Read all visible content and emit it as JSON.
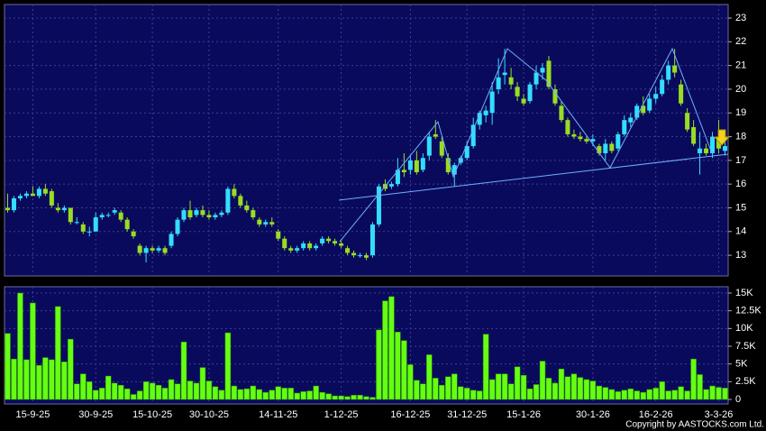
{
  "chart_data": [
    {
      "type": "candlestick",
      "up_color": "#33ddff",
      "down_color": "#99dd22",
      "grid": true,
      "xlim": [
        -0.5,
        114.5
      ],
      "ylim": [
        12.13,
        23.57
      ],
      "xticks": [
        {
          "value": 4,
          "label": "15-9-25"
        },
        {
          "value": 14,
          "label": "30-9-25"
        },
        {
          "value": 23,
          "label": "15-10-25"
        },
        {
          "value": 32,
          "label": "30-10-25"
        },
        {
          "value": 43,
          "label": "14-11-25"
        },
        {
          "value": 53,
          "label": "1-12-25"
        },
        {
          "value": 64,
          "label": "16-12-25"
        },
        {
          "value": 73,
          "label": "31-12-25"
        },
        {
          "value": 82,
          "label": "15-1-26"
        },
        {
          "value": 93,
          "label": "30-1-26"
        },
        {
          "value": 103,
          "label": "16-2-26"
        },
        {
          "value": 113,
          "label": "3-3-26"
        }
      ],
      "yticks": [
        13,
        14,
        15,
        16,
        17,
        18,
        19,
        20,
        21,
        22,
        23
      ],
      "ohlc": [
        [
          15.0,
          15.6,
          14.8,
          14.9
        ],
        [
          14.9,
          15.5,
          14.8,
          15.4
        ],
        [
          15.4,
          15.6,
          15.3,
          15.5
        ],
        [
          15.5,
          15.7,
          15.4,
          15.6
        ],
        [
          15.6,
          15.9,
          15.5,
          15.5
        ],
        [
          15.5,
          15.9,
          15.4,
          15.8
        ],
        [
          15.8,
          16.0,
          15.5,
          15.6
        ],
        [
          15.7,
          15.8,
          15.0,
          15.1
        ],
        [
          15.0,
          15.2,
          14.8,
          14.9
        ],
        [
          14.9,
          15.1,
          14.8,
          15.0
        ],
        [
          15.0,
          15.0,
          14.3,
          14.4
        ],
        [
          14.4,
          14.6,
          14.3,
          14.4
        ],
        [
          14.3,
          14.4,
          13.9,
          14.0
        ],
        [
          14.0,
          14.2,
          13.8,
          14.0
        ],
        [
          14.0,
          14.8,
          14.0,
          14.6
        ],
        [
          14.6,
          14.8,
          14.5,
          14.7
        ],
        [
          14.7,
          14.8,
          14.6,
          14.7
        ],
        [
          14.8,
          15.0,
          14.7,
          14.9
        ],
        [
          14.8,
          14.9,
          14.4,
          14.5
        ],
        [
          14.5,
          14.6,
          14.0,
          14.1
        ],
        [
          14.0,
          14.1,
          13.7,
          13.8
        ],
        [
          13.4,
          13.5,
          13.0,
          13.1
        ],
        [
          13.1,
          13.4,
          12.7,
          13.3
        ],
        [
          13.3,
          13.4,
          13.1,
          13.2
        ],
        [
          13.2,
          13.4,
          13.1,
          13.3
        ],
        [
          13.3,
          13.4,
          13.0,
          13.1
        ],
        [
          13.4,
          14.0,
          13.3,
          13.9
        ],
        [
          13.9,
          14.6,
          13.8,
          14.5
        ],
        [
          14.5,
          15.0,
          14.4,
          14.9
        ],
        [
          14.9,
          15.3,
          14.5,
          14.6
        ],
        [
          14.7,
          15.0,
          14.6,
          14.9
        ],
        [
          14.9,
          15.1,
          14.6,
          14.7
        ],
        [
          14.7,
          14.9,
          14.5,
          14.6
        ],
        [
          14.6,
          14.8,
          14.5,
          14.7
        ],
        [
          14.7,
          14.9,
          14.6,
          14.8
        ],
        [
          14.8,
          15.9,
          14.7,
          15.8
        ],
        [
          15.8,
          16.0,
          15.4,
          15.5
        ],
        [
          15.5,
          15.6,
          15.0,
          15.1
        ],
        [
          15.1,
          15.3,
          14.8,
          14.9
        ],
        [
          14.9,
          15.0,
          14.5,
          14.6
        ],
        [
          14.5,
          14.6,
          14.2,
          14.3
        ],
        [
          14.3,
          14.5,
          14.2,
          14.4
        ],
        [
          14.4,
          14.6,
          14.2,
          14.3
        ],
        [
          14.0,
          14.1,
          13.6,
          13.7
        ],
        [
          13.7,
          13.8,
          13.2,
          13.3
        ],
        [
          13.3,
          13.4,
          13.1,
          13.2
        ],
        [
          13.2,
          13.4,
          13.1,
          13.3
        ],
        [
          13.3,
          13.6,
          13.2,
          13.5
        ],
        [
          13.5,
          13.6,
          13.2,
          13.3
        ],
        [
          13.3,
          13.5,
          13.2,
          13.4
        ],
        [
          13.5,
          13.8,
          13.4,
          13.7
        ],
        [
          13.7,
          13.8,
          13.5,
          13.6
        ],
        [
          13.6,
          13.7,
          13.4,
          13.5
        ],
        [
          13.5,
          13.6,
          13.3,
          13.4
        ],
        [
          13.3,
          13.4,
          13.0,
          13.1
        ],
        [
          13.1,
          13.2,
          12.9,
          13.0
        ],
        [
          13.0,
          13.1,
          12.9,
          13.0
        ],
        [
          13.0,
          13.1,
          12.8,
          12.9
        ],
        [
          13.0,
          14.4,
          12.9,
          14.3
        ],
        [
          14.3,
          16.0,
          14.2,
          15.9
        ],
        [
          16.0,
          16.2,
          15.7,
          15.8
        ],
        [
          15.9,
          16.1,
          15.8,
          16.0
        ],
        [
          16.0,
          17.1,
          15.9,
          16.6
        ],
        [
          16.6,
          17.3,
          16.3,
          16.5
        ],
        [
          16.6,
          17.2,
          16.4,
          17.0
        ],
        [
          17.0,
          17.4,
          16.4,
          16.5
        ],
        [
          16.6,
          17.3,
          16.5,
          17.1
        ],
        [
          17.2,
          18.2,
          17.0,
          18.0
        ],
        [
          18.1,
          18.7,
          17.9,
          18.0
        ],
        [
          17.8,
          18.0,
          17.1,
          17.2
        ],
        [
          17.1,
          17.3,
          16.4,
          16.5
        ],
        [
          16.4,
          16.9,
          15.9,
          16.8
        ],
        [
          16.9,
          17.2,
          16.8,
          17.1
        ],
        [
          17.1,
          17.8,
          17.0,
          17.6
        ],
        [
          17.6,
          18.8,
          17.5,
          18.5
        ],
        [
          18.5,
          19.1,
          18.3,
          19.0
        ],
        [
          18.9,
          19.3,
          18.6,
          19.1
        ],
        [
          19.0,
          20.3,
          18.5,
          19.9
        ],
        [
          20.0,
          21.3,
          19.8,
          20.5
        ],
        [
          20.6,
          21.7,
          20.2,
          20.7
        ],
        [
          20.5,
          20.9,
          20.0,
          20.2
        ],
        [
          20.1,
          20.3,
          19.5,
          19.7
        ],
        [
          19.6,
          19.8,
          19.3,
          19.4
        ],
        [
          19.5,
          20.3,
          19.4,
          20.2
        ],
        [
          20.2,
          21.0,
          20.0,
          20.7
        ],
        [
          20.7,
          21.1,
          20.4,
          20.9
        ],
        [
          21.2,
          21.4,
          20.0,
          20.1
        ],
        [
          20.0,
          20.2,
          19.3,
          19.4
        ],
        [
          19.3,
          19.5,
          18.6,
          18.7
        ],
        [
          18.7,
          18.8,
          18.0,
          18.1
        ],
        [
          18.1,
          18.3,
          17.9,
          18.0
        ],
        [
          18.0,
          18.2,
          17.8,
          17.9
        ],
        [
          17.9,
          18.0,
          17.7,
          17.8
        ],
        [
          17.8,
          18.1,
          17.6,
          17.9
        ],
        [
          17.6,
          17.7,
          17.2,
          17.3
        ],
        [
          17.3,
          17.9,
          17.0,
          17.7
        ],
        [
          17.7,
          17.8,
          17.3,
          17.4
        ],
        [
          17.5,
          18.2,
          17.4,
          18.1
        ],
        [
          18.1,
          18.9,
          18.0,
          18.7
        ],
        [
          18.6,
          19.0,
          18.4,
          18.8
        ],
        [
          18.8,
          19.4,
          18.7,
          19.3
        ],
        [
          19.3,
          19.7,
          18.9,
          19.0
        ],
        [
          19.1,
          19.8,
          19.0,
          19.6
        ],
        [
          19.6,
          20.1,
          19.4,
          19.8
        ],
        [
          19.8,
          20.6,
          19.7,
          20.4
        ],
        [
          20.4,
          21.2,
          20.2,
          21.0
        ],
        [
          21.0,
          21.7,
          20.5,
          20.7
        ],
        [
          20.2,
          20.4,
          19.3,
          19.4
        ],
        [
          19.0,
          19.2,
          18.2,
          18.3
        ],
        [
          18.4,
          18.7,
          17.6,
          17.7
        ],
        [
          17.3,
          18.2,
          16.4,
          17.5
        ],
        [
          17.5,
          17.7,
          17.2,
          17.3
        ],
        [
          17.3,
          18.2,
          17.1,
          18.0
        ],
        [
          18.0,
          18.7,
          17.3,
          17.5
        ],
        [
          17.4,
          17.8,
          17.2,
          17.6
        ]
      ]
    },
    {
      "type": "bar",
      "color": "#66ff11",
      "grid": true,
      "xlim": [
        -0.5,
        114.5
      ],
      "ylim": [
        -636,
        15890
      ],
      "yticks": [
        0,
        {
          "value": 2500,
          "label": "2.5K"
        },
        {
          "value": 5000,
          "label": "5K"
        },
        {
          "value": 7500,
          "label": "7.5K"
        },
        {
          "value": 10000,
          "label": "10K"
        },
        {
          "value": 12500,
          "label": "12.5K"
        },
        {
          "value": 15000,
          "label": "15K"
        }
      ],
      "values": [
        9300,
        5700,
        15000,
        5600,
        13600,
        4800,
        5900,
        5600,
        13100,
        5300,
        8500,
        2200,
        3600,
        2500,
        1300,
        1600,
        3300,
        2300,
        2000,
        1500,
        700,
        1200,
        2500,
        2300,
        2000,
        1600,
        2800,
        2200,
        8100,
        2600,
        2300,
        4500,
        2600,
        1800,
        1300,
        9400,
        1900,
        1400,
        1500,
        1900,
        1400,
        1000,
        1300,
        1800,
        1600,
        1600,
        900,
        1100,
        1200,
        1900,
        1000,
        800,
        500,
        500,
        400,
        600,
        600,
        400,
        300,
        9800,
        13900,
        14500,
        9500,
        8300,
        4900,
        2700,
        2200,
        6300,
        3000,
        2000,
        3200,
        3600,
        1800,
        1600,
        1300,
        1200,
        9200,
        2800,
        3600,
        3600,
        2200,
        4600,
        3400,
        1500,
        2100,
        5400,
        3000,
        2300,
        4300,
        3200,
        3600,
        3100,
        2800,
        2600,
        1900,
        1700,
        1400,
        1100,
        1300,
        1500,
        1200,
        1000,
        1400,
        1600,
        2500,
        1200,
        1300,
        1800,
        1200,
        5700,
        3500,
        1400,
        1900,
        1700,
        1600
      ]
    }
  ],
  "footer": "Copyright by AASTOCKS.com Ltd."
}
